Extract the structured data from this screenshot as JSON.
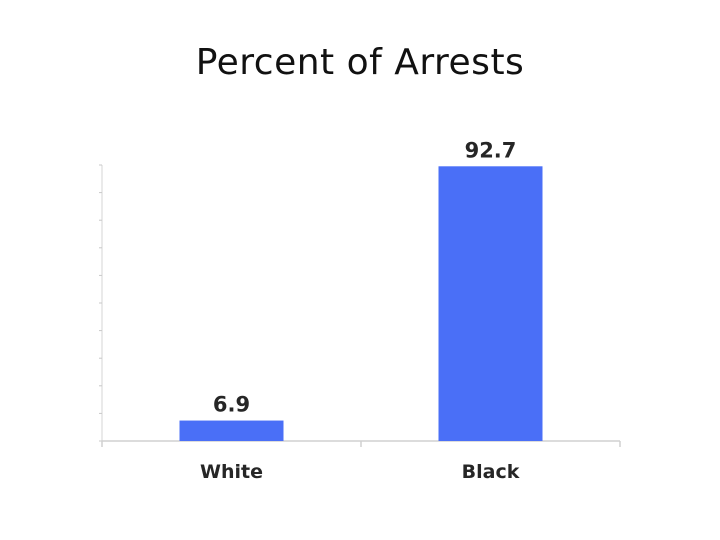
{
  "chart_data": {
    "type": "bar",
    "title": "Percent of Arrests",
    "categories": [
      "White",
      "Black"
    ],
    "values": [
      6.9,
      92.7
    ],
    "data_labels": [
      "6.9",
      "92.7"
    ],
    "xlabel": "",
    "ylabel": "",
    "ylim": [
      0,
      100
    ],
    "grid": false,
    "legend": "none",
    "bar_color": "#4a6ff7"
  }
}
